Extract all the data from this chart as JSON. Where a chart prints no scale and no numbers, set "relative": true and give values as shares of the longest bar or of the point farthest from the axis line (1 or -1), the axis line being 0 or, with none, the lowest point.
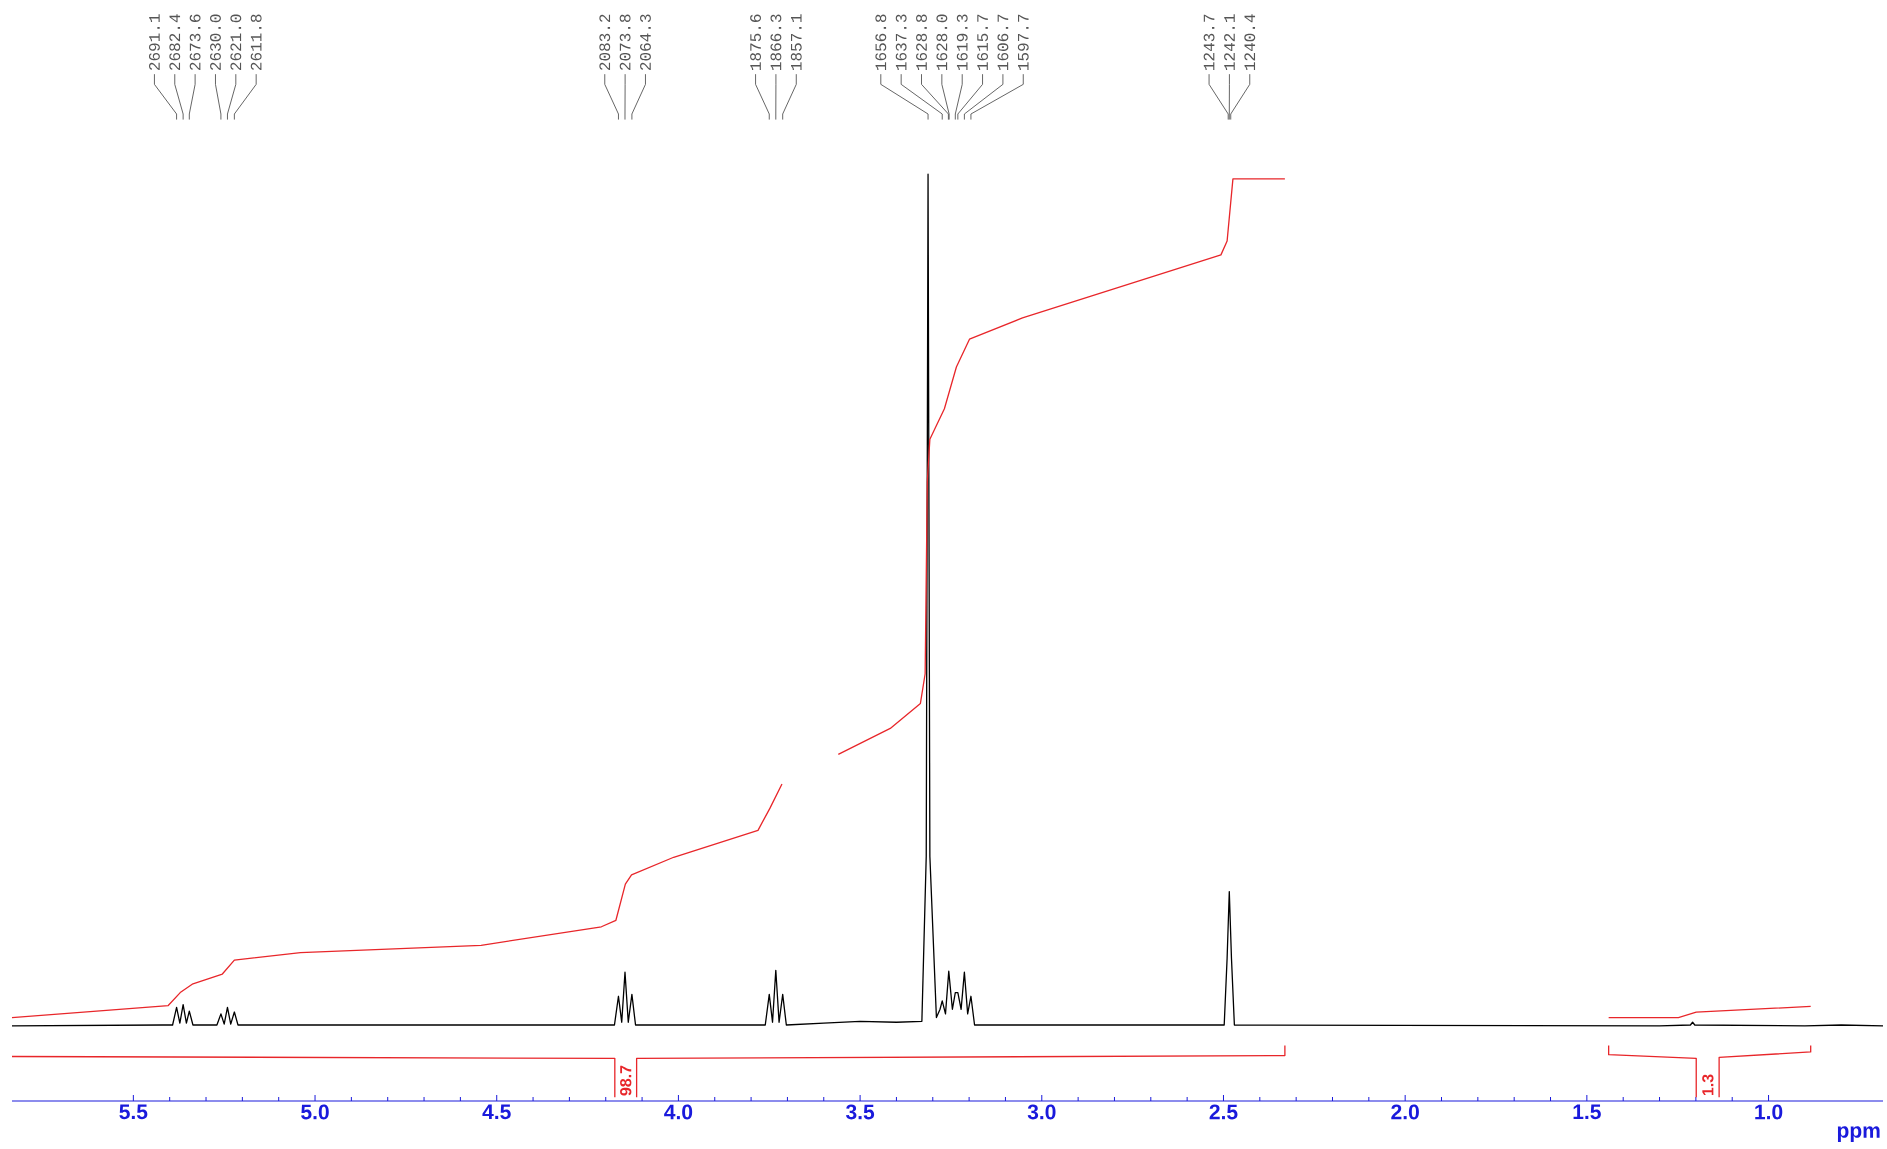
{
  "chart_data": {
    "type": "line",
    "relative": true,
    "xlabel": "ppm",
    "xlim": [
      5.834,
      0.685
    ],
    "xticks": [
      {
        "value": 5.5,
        "label": "5.5"
      },
      {
        "value": 5.0,
        "label": "5.0"
      },
      {
        "value": 4.5,
        "label": "4.5"
      },
      {
        "value": 4.0,
        "label": "4.0"
      },
      {
        "value": 3.5,
        "label": "3.5"
      },
      {
        "value": 3.0,
        "label": "3.0"
      },
      {
        "value": 2.5,
        "label": "2.5"
      },
      {
        "value": 2.0,
        "label": "2.0"
      },
      {
        "value": 1.5,
        "label": "1.5"
      },
      {
        "value": 1.0,
        "label": "1.0"
      }
    ],
    "series": [
      {
        "color": "#000000",
        "x": [
          5.834,
          5.42,
          5.392,
          5.381,
          5.372,
          5.363,
          5.354,
          5.346,
          5.336,
          5.27,
          5.259,
          5.25,
          5.241,
          5.232,
          5.222,
          5.212,
          4.6,
          4.176,
          4.165,
          4.156,
          4.147,
          4.138,
          4.128,
          4.118,
          3.95,
          3.761,
          3.75,
          3.741,
          3.732,
          3.723,
          3.713,
          3.703,
          3.6,
          3.5,
          3.4,
          3.33,
          3.318,
          3.313,
          3.308,
          3.29,
          3.28,
          3.274,
          3.265,
          3.256,
          3.246,
          3.238,
          3.231,
          3.222,
          3.213,
          3.204,
          3.195,
          3.185,
          3.0,
          2.498,
          2.49,
          2.484,
          2.478,
          2.47,
          1.3,
          1.215,
          1.209,
          1.203,
          0.9,
          0.8,
          0.685
        ],
        "values": [
          0.081,
          0.082,
          0.082,
          0.101,
          0.084,
          0.104,
          0.084,
          0.097,
          0.082,
          0.082,
          0.094,
          0.083,
          0.101,
          0.083,
          0.096,
          0.082,
          0.082,
          0.082,
          0.113,
          0.085,
          0.139,
          0.085,
          0.115,
          0.082,
          0.082,
          0.082,
          0.115,
          0.085,
          0.141,
          0.085,
          0.115,
          0.082,
          0.084,
          0.086,
          0.085,
          0.086,
          0.264,
          1.0,
          0.264,
          0.09,
          0.099,
          0.108,
          0.094,
          0.14,
          0.099,
          0.117,
          0.117,
          0.099,
          0.139,
          0.094,
          0.113,
          0.082,
          0.082,
          0.082,
          0.154,
          0.226,
          0.154,
          0.082,
          0.081,
          0.082,
          0.085,
          0.082,
          0.081,
          0.082,
          0.081
        ]
      },
      {
        "color": "#e8262a",
        "x": [
          5.834,
          5.404,
          5.371,
          5.338,
          5.255,
          5.222,
          5.04,
          4.543,
          4.212,
          4.172,
          4.146,
          4.129,
          4.013,
          3.781,
          3.748,
          3.715,
          3.64,
          3.56,
          3.417,
          3.334,
          3.321,
          3.315,
          3.308,
          3.268,
          3.235,
          3.199,
          3.053,
          2.507,
          2.49,
          2.474,
          2.331
        ],
        "values": [
          0.09,
          0.103,
          0.117,
          0.126,
          0.137,
          0.152,
          0.16,
          0.168,
          0.188,
          0.195,
          0.234,
          0.244,
          0.263,
          0.292,
          0.316,
          0.342,
          null,
          0.374,
          0.402,
          0.429,
          0.461,
          0.669,
          0.714,
          0.747,
          0.792,
          0.822,
          0.845,
          0.913,
          0.928,
          0.995,
          0.995
        ]
      },
      {
        "color": "#e8262a",
        "x": [
          1.44,
          1.248,
          1.199,
          0.884
        ],
        "values": [
          0.09,
          0.09,
          0.096,
          0.102
        ]
      },
      {
        "color": "#e8262a",
        "x": [
          5.834,
          4.175,
          4.175,
          4.145,
          4.115,
          4.115,
          2.331,
          2.331
        ],
        "values": [
          0.048,
          0.046,
          0.004,
          null,
          0.004,
          0.046,
          0.049,
          0.06
        ]
      },
      {
        "color": "#e8262a",
        "x": [
          1.44,
          1.44,
          1.199,
          1.199,
          1.167,
          1.136,
          1.136,
          0.884,
          0.884
        ],
        "values": [
          0.06,
          0.05,
          0.046,
          0.004,
          null,
          0.004,
          0.047,
          0.053,
          0.06
        ]
      }
    ],
    "annotations": [
      {
        "text": "2691.1",
        "x": 5.381
      },
      {
        "text": "2682.4",
        "x": 5.363
      },
      {
        "text": "2673.6",
        "x": 5.346
      },
      {
        "text": "2630.0",
        "x": 5.259
      },
      {
        "text": "2621.0",
        "x": 5.241
      },
      {
        "text": "2611.8",
        "x": 5.222
      },
      {
        "text": "2083.2",
        "x": 4.165
      },
      {
        "text": "2073.8",
        "x": 4.147
      },
      {
        "text": "2064.3",
        "x": 4.128
      },
      {
        "text": "1875.6",
        "x": 3.75
      },
      {
        "text": "1866.3",
        "x": 3.732
      },
      {
        "text": "1857.1",
        "x": 3.713
      },
      {
        "text": "1656.8",
        "x": 3.313
      },
      {
        "text": "1637.3",
        "x": 3.274
      },
      {
        "text": "1628.8",
        "x": 3.257
      },
      {
        "text": "1628.0",
        "x": 3.255
      },
      {
        "text": "1619.3",
        "x": 3.238
      },
      {
        "text": "1615.7",
        "x": 3.231
      },
      {
        "text": "1606.7",
        "x": 3.213
      },
      {
        "text": "1597.7",
        "x": 3.195
      },
      {
        "text": "1243.7",
        "x": 2.487
      },
      {
        "text": "1242.1",
        "x": 2.484
      },
      {
        "text": "1240.4",
        "x": 2.48
      },
      "98.7",
      "1.3"
    ]
  }
}
